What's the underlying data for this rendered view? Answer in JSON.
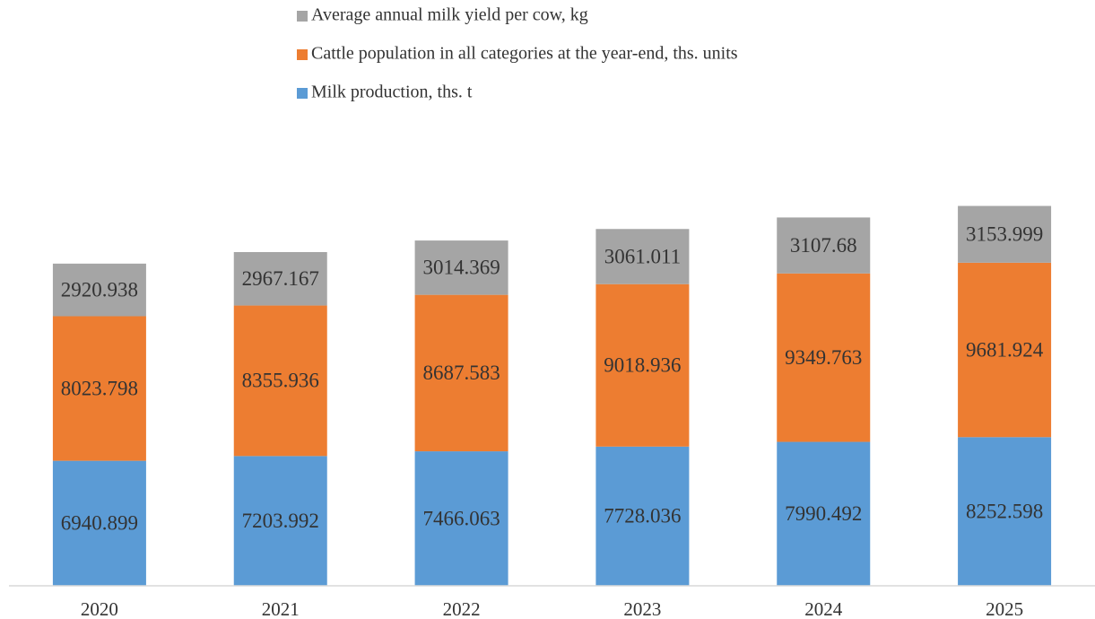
{
  "chart_data": {
    "type": "stacked_bar",
    "categories": [
      "2020",
      "2021",
      "2022",
      "2023",
      "2024",
      "2025"
    ],
    "series": [
      {
        "name": "Milk production, ths. t",
        "color": "#5b9bd5",
        "values": [
          6940.899,
          7203.992,
          7466.063,
          7728.036,
          7990.492,
          8252.598
        ]
      },
      {
        "name": "Cattle population in all categories at the year-end, ths. units",
        "color": "#ed7d31",
        "values": [
          8023.798,
          8355.936,
          8687.583,
          9018.936,
          9349.763,
          9681.924
        ]
      },
      {
        "name": "Average annual milk yield per cow, kg",
        "color": "#a5a5a5",
        "values": [
          2920.938,
          2967.167,
          3014.369,
          3061.011,
          3107.68,
          3153.999
        ]
      }
    ],
    "ylim": [
      0,
      25000
    ],
    "legend": "top"
  }
}
